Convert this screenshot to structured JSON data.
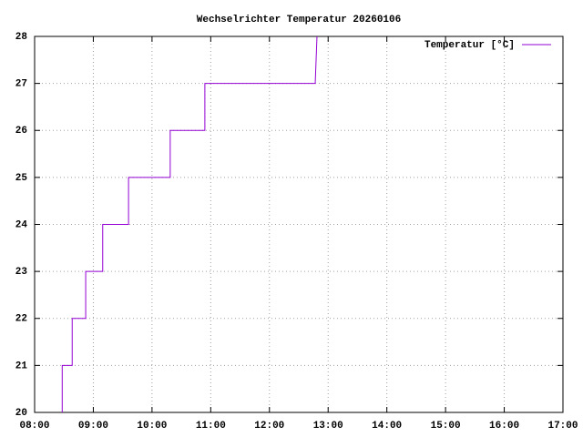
{
  "chart_data": {
    "type": "line",
    "title": "Wechselrichter Temperatur 20260106",
    "x": [
      8.47,
      8.47,
      8.64,
      8.64,
      8.87,
      8.87,
      9.16,
      9.16,
      9.6,
      9.6,
      10.31,
      10.31,
      10.9,
      10.9,
      12.78,
      12.81
    ],
    "series": [
      {
        "name": "Temperatur [°C]",
        "color": "#9400d3",
        "values": [
          20,
          21,
          21,
          22,
          22,
          23,
          23,
          24,
          24,
          25,
          25,
          26,
          26,
          27,
          27,
          28
        ]
      }
    ],
    "xlim": [
      8,
      17
    ],
    "xticks": [
      {
        "value": 8,
        "label": "08:00"
      },
      {
        "value": 9,
        "label": "09:00"
      },
      {
        "value": 10,
        "label": "10:00"
      },
      {
        "value": 11,
        "label": "11:00"
      },
      {
        "value": 12,
        "label": "12:00"
      },
      {
        "value": 13,
        "label": "13:00"
      },
      {
        "value": 14,
        "label": "14:00"
      },
      {
        "value": 15,
        "label": "15:00"
      },
      {
        "value": 16,
        "label": "16:00"
      },
      {
        "value": 17,
        "label": "17:00"
      }
    ],
    "ylim": [
      20,
      28
    ],
    "yticks": [
      20,
      21,
      22,
      23,
      24,
      25,
      26,
      27,
      28
    ],
    "grid": true,
    "legend": "top-right"
  }
}
